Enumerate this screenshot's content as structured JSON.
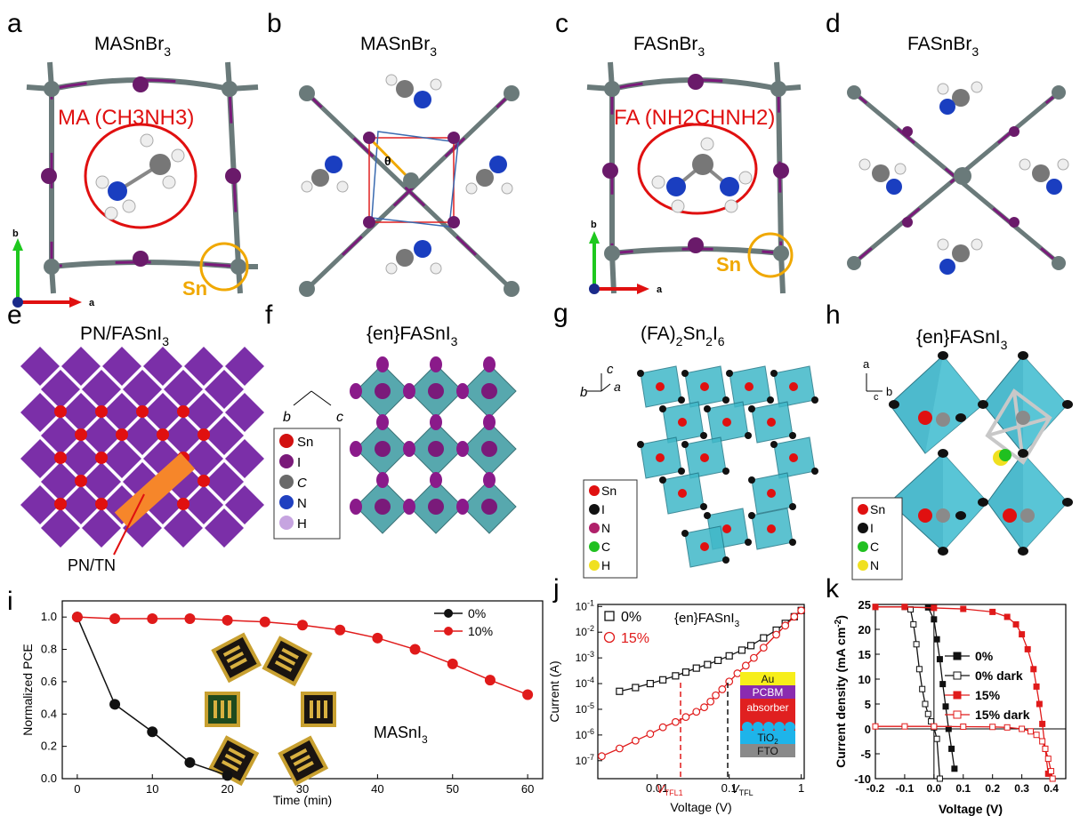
{
  "panels": {
    "a": {
      "letter": "a",
      "title": "MASnBr",
      "sub": "3",
      "cation": "MA (CH3NH3)",
      "sn": "Sn",
      "axis_b": "b",
      "axis_a": "a"
    },
    "b": {
      "letter": "b",
      "title": "MASnBr",
      "sub": "3",
      "theta": "θ"
    },
    "c": {
      "letter": "c",
      "title": "FASnBr",
      "sub": "3",
      "cation": "FA (NH2CHNH2)",
      "sn": "Sn",
      "axis_b": "b",
      "axis_a": "a"
    },
    "d": {
      "letter": "d",
      "title": "FASnBr",
      "sub": "3"
    },
    "e": {
      "letter": "e",
      "title": "PN/FASnI",
      "sub": "3",
      "label": "PN/TN"
    },
    "f": {
      "letter": "f",
      "title": "{en}FASnI",
      "sub": "3",
      "axis1": "b",
      "axis2": "c",
      "legend": [
        {
          "sym": "Sn",
          "color": "#d21010"
        },
        {
          "sym": "I",
          "color": "#7a1a7a"
        },
        {
          "sym": "C",
          "color": "#6a6a6a"
        },
        {
          "sym": "N",
          "color": "#2040c0"
        },
        {
          "sym": "H",
          "color": "#c6a4e0"
        }
      ]
    },
    "g": {
      "letter": "g",
      "title": "(FA)",
      "sub1": "2",
      "mid": "Sn",
      "sub2": "2",
      "mid2": "I",
      "sub3": "6",
      "axis_b": "b",
      "axis_c": "c",
      "axis_a": "a",
      "legend": [
        {
          "sym": "Sn",
          "color": "#e01010"
        },
        {
          "sym": "I",
          "color": "#111111"
        },
        {
          "sym": "N",
          "color": "#b0206a"
        },
        {
          "sym": "C",
          "color": "#20c020"
        },
        {
          "sym": "H",
          "color": "#f0e020"
        }
      ]
    },
    "h": {
      "letter": "h",
      "title": "{en}FASnI",
      "sub": "3",
      "axis_a": "a",
      "axis_c": "c",
      "axis_b": "b",
      "legend": [
        {
          "sym": "Sn",
          "color": "#e01010"
        },
        {
          "sym": "I",
          "color": "#111111"
        },
        {
          "sym": "C",
          "color": "#20c020"
        },
        {
          "sym": "N",
          "color": "#f0e020"
        }
      ]
    },
    "i": {
      "letter": "i",
      "xlabel": "Time (min)",
      "ylabel": "Normalized PCE",
      "inset": "MASnI",
      "inset_sub": "3"
    },
    "j": {
      "letter": "j",
      "xlabel": "Voltage (V)",
      "ylabel": "Current (A)",
      "inset": "{en}FASnI",
      "inset_sub": "3",
      "vtfl1": "V",
      "vtfl1_sub": "TFL1",
      "vtfl2": "V",
      "vtfl2_sub": "TFL",
      "stack": [
        {
          "label": "Au",
          "color": "#f7ee1a"
        },
        {
          "label": "PCBM",
          "color": "#8a2bb0"
        },
        {
          "label": "absorber",
          "color": "#e02020"
        },
        {
          "label": "TiO",
          "sub": "2",
          "color": "#1eb4ea"
        },
        {
          "label": "FTO",
          "color": "#8a8a8a"
        }
      ]
    },
    "k": {
      "letter": "k",
      "xlabel": "Voltage (V)",
      "ylabel": "Current density (mA cm",
      "ylabel_sup": "-2",
      "ylabel_end": ")"
    }
  },
  "chart_data": [
    {
      "type": "line",
      "panel": "i",
      "xlabel": "Time (min)",
      "ylabel": "Normalized PCE",
      "xlim": [
        -2,
        62
      ],
      "ylim": [
        0,
        1.1
      ],
      "xticks": [
        0,
        10,
        20,
        30,
        40,
        50,
        60
      ],
      "yticks": [
        0.0,
        0.2,
        0.4,
        0.6,
        0.8,
        1.0
      ],
      "legend_position": "top-right",
      "series": [
        {
          "name": "0%",
          "color": "#111111",
          "x": [
            0,
            5,
            10,
            15,
            20
          ],
          "y": [
            1.0,
            0.46,
            0.29,
            0.1,
            0.02
          ]
        },
        {
          "name": "10%",
          "color": "#e01a1a",
          "x": [
            0,
            5,
            10,
            15,
            20,
            25,
            30,
            35,
            40,
            45,
            50,
            55,
            60
          ],
          "y": [
            1.0,
            0.99,
            0.99,
            0.99,
            0.98,
            0.97,
            0.95,
            0.92,
            0.87,
            0.8,
            0.71,
            0.61,
            0.52
          ]
        }
      ]
    },
    {
      "type": "scatter",
      "panel": "j",
      "xscale": "log",
      "yscale": "log",
      "xlabel": "Voltage (V)",
      "ylabel": "Current (A)",
      "xlim": [
        0.0015,
        1.1
      ],
      "ylim": [
        2e-08,
        0.12
      ],
      "xticks": [
        0.01,
        0.1,
        1
      ],
      "xticklabels": [
        "0.01",
        "0.1",
        "1"
      ],
      "yticks": [
        1e-07,
        1e-06,
        1e-05,
        0.0001,
        0.001,
        0.01,
        0.1
      ],
      "ytickexp": [
        "-7",
        "-6",
        "-5",
        "-4",
        "-3",
        "-2",
        "-1"
      ],
      "legend_position": "top-left",
      "series": [
        {
          "name": "0%",
          "color": "#111111",
          "marker": "open-square",
          "x": [
            0.003,
            0.005,
            0.008,
            0.012,
            0.018,
            0.025,
            0.035,
            0.05,
            0.07,
            0.1,
            0.15,
            0.2,
            0.3,
            0.45,
            0.6,
            0.8,
            1.0
          ],
          "y": [
            5e-05,
            7e-05,
            0.0001,
            0.00014,
            0.0002,
            0.00028,
            0.0004,
            0.00055,
            0.0008,
            0.0012,
            0.002,
            0.003,
            0.006,
            0.012,
            0.022,
            0.04,
            0.07
          ]
        },
        {
          "name": "15%",
          "color": "#e01a1a",
          "marker": "open-circle",
          "x": [
            0.0017,
            0.003,
            0.005,
            0.008,
            0.012,
            0.018,
            0.025,
            0.035,
            0.045,
            0.055,
            0.065,
            0.08,
            0.1,
            0.13,
            0.17,
            0.22,
            0.3,
            0.45,
            0.6,
            0.8,
            1.0
          ],
          "y": [
            1.5e-07,
            3e-07,
            6e-07,
            1.1e-06,
            2e-06,
            3.2e-06,
            5e-06,
            8e-06,
            1.2e-05,
            2e-05,
            3.5e-05,
            6e-05,
            0.00012,
            0.00025,
            0.0005,
            0.001,
            0.0025,
            0.008,
            0.018,
            0.04,
            0.07
          ]
        }
      ]
    },
    {
      "type": "line",
      "panel": "k",
      "xlabel": "Voltage (V)",
      "ylabel": "Current density (mA cm-2)",
      "xlim": [
        -0.2,
        0.45
      ],
      "ylim": [
        -10,
        25
      ],
      "xticks": [
        -0.2,
        -0.1,
        0.0,
        0.1,
        0.2,
        0.3,
        0.4
      ],
      "xticklabels": [
        "-0.2",
        "-0.1",
        "0.0",
        "0.1",
        "0.2",
        "0.3",
        "0.4"
      ],
      "yticks": [
        -10,
        -5,
        0,
        5,
        10,
        15,
        20,
        25
      ],
      "legend_position": "center",
      "series": [
        {
          "name": "0%",
          "color": "#111111",
          "marker": "filled-square",
          "x": [
            -0.2,
            -0.1,
            -0.02,
            0.0,
            0.01,
            0.02,
            0.03,
            0.04,
            0.05,
            0.06,
            0.07
          ],
          "y": [
            24.5,
            24.5,
            24.4,
            22,
            18,
            14,
            9,
            4.5,
            0,
            -4,
            -8
          ]
        },
        {
          "name": "0% dark",
          "color": "#111111",
          "marker": "open-square",
          "x": [
            -0.08,
            -0.07,
            -0.06,
            -0.05,
            -0.04,
            -0.03,
            -0.02,
            -0.01,
            0.0,
            0.01,
            0.02
          ],
          "y": [
            24,
            21,
            17,
            12,
            8,
            5,
            3,
            1.5,
            0.3,
            -2,
            -10
          ]
        },
        {
          "name": "15%",
          "color": "#e01a1a",
          "marker": "filled-square",
          "x": [
            -0.2,
            -0.1,
            0.0,
            0.1,
            0.2,
            0.25,
            0.28,
            0.3,
            0.32,
            0.34,
            0.35,
            0.36,
            0.37,
            0.38,
            0.39
          ],
          "y": [
            24.5,
            24.5,
            24.3,
            24.1,
            23.5,
            22.5,
            21,
            19,
            16,
            12,
            8.5,
            5,
            1,
            -4,
            -9
          ]
        },
        {
          "name": "15% dark",
          "color": "#e01a1a",
          "marker": "open-square",
          "x": [
            -0.2,
            -0.1,
            0.0,
            0.1,
            0.2,
            0.25,
            0.3,
            0.33,
            0.35,
            0.37,
            0.38,
            0.39,
            0.4,
            0.405
          ],
          "y": [
            0.5,
            0.5,
            0.5,
            0.45,
            0.4,
            0.3,
            0.0,
            -0.5,
            -1.2,
            -2.5,
            -4,
            -6,
            -8.5,
            -10
          ]
        }
      ]
    }
  ]
}
